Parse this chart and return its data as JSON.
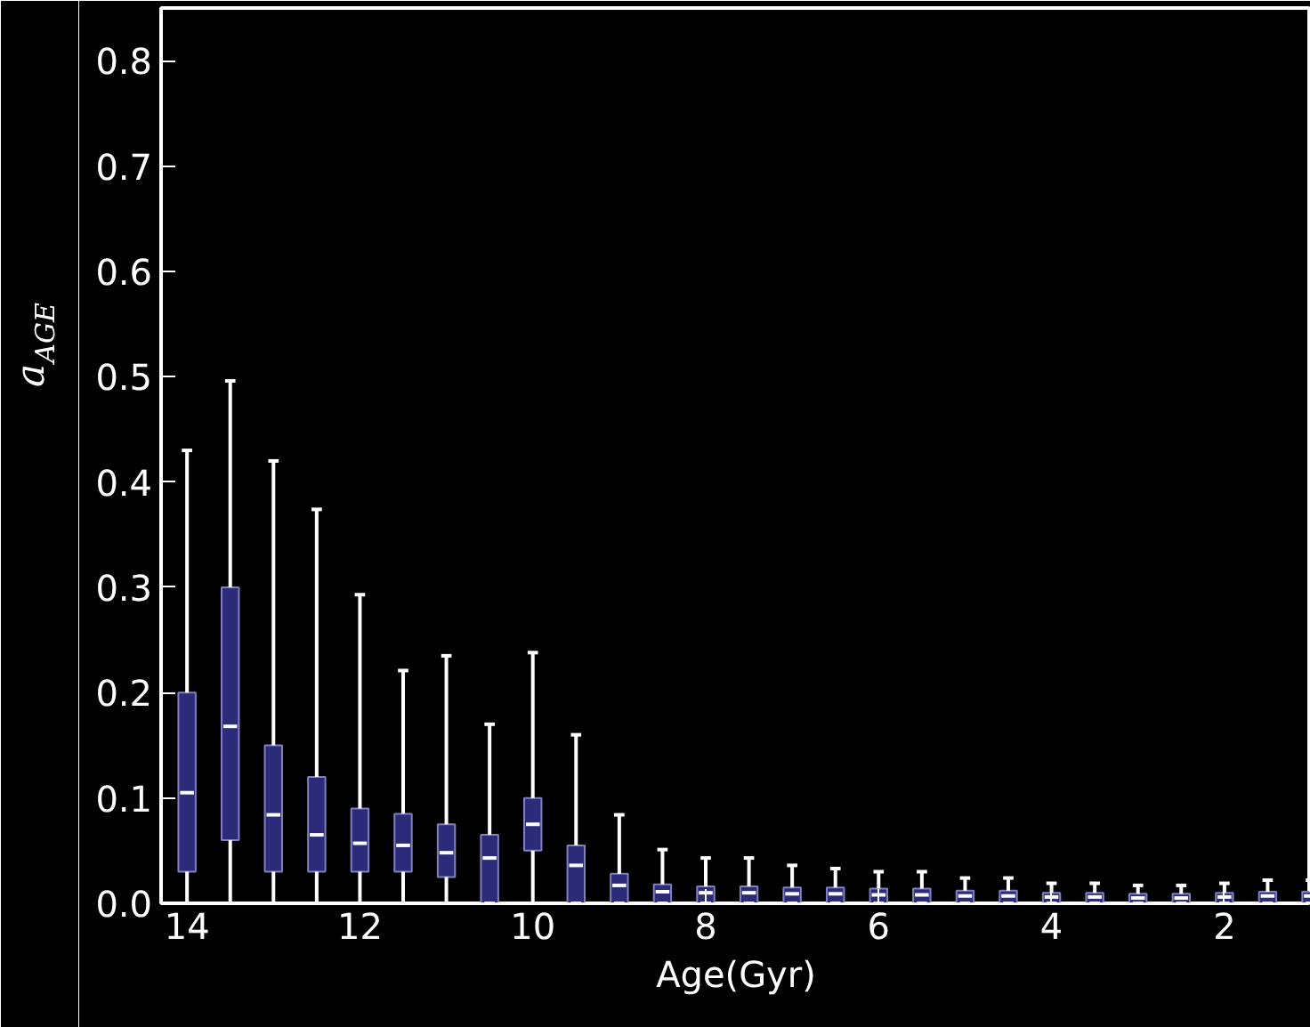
{
  "chart_data": {
    "type": "box",
    "xlabel": "Age(Gyr)",
    "ylabel": "a$_{AGE}$",
    "x": [
      14,
      13.5,
      13,
      12.5,
      12,
      11.5,
      11,
      10.5,
      10,
      9.5,
      9,
      8.5,
      8,
      7.5,
      7,
      6.5,
      6,
      5.5,
      5,
      4.5,
      4,
      3.5,
      3,
      2.5,
      2,
      1.5,
      1
    ],
    "color": "#2b2b7a",
    "boxes": [
      {
        "low": 0,
        "q1": 0.03,
        "median": 0.105,
        "q3": 0.2,
        "high": 0.43
      },
      {
        "low": 0,
        "q1": 0.06,
        "median": 0.168,
        "q3": 0.3,
        "high": 0.496
      },
      {
        "low": 0,
        "q1": 0.03,
        "median": 0.084,
        "q3": 0.15,
        "high": 0.42
      },
      {
        "low": 0,
        "q1": 0.03,
        "median": 0.065,
        "q3": 0.12,
        "high": 0.374
      },
      {
        "low": 0,
        "q1": 0.03,
        "median": 0.057,
        "q3": 0.09,
        "high": 0.293
      },
      {
        "low": 0,
        "q1": 0.03,
        "median": 0.055,
        "q3": 0.085,
        "high": 0.221
      },
      {
        "low": 0,
        "q1": 0.025,
        "median": 0.048,
        "q3": 0.075,
        "high": 0.235
      },
      {
        "low": 0,
        "q1": 0,
        "median": 0.043,
        "q3": 0.065,
        "high": 0.17
      },
      {
        "low": 0,
        "q1": 0.05,
        "median": 0.075,
        "q3": 0.1,
        "high": 0.238
      },
      {
        "low": 0,
        "q1": 0,
        "median": 0.036,
        "q3": 0.055,
        "high": 0.16
      },
      {
        "low": 0,
        "q1": 0,
        "median": 0.017,
        "q3": 0.028,
        "high": 0.084
      },
      {
        "low": 0,
        "q1": 0,
        "median": 0.011,
        "q3": 0.018,
        "high": 0.051
      },
      {
        "low": 0,
        "q1": 0,
        "median": 0.01,
        "q3": 0.016,
        "high": 0.043
      },
      {
        "low": 0,
        "q1": 0,
        "median": 0.01,
        "q3": 0.016,
        "high": 0.043
      },
      {
        "low": 0,
        "q1": 0,
        "median": 0.009,
        "q3": 0.015,
        "high": 0.036
      },
      {
        "low": 0,
        "q1": 0,
        "median": 0.009,
        "q3": 0.015,
        "high": 0.033
      },
      {
        "low": 0,
        "q1": 0,
        "median": 0.008,
        "q3": 0.014,
        "high": 0.03
      },
      {
        "low": 0,
        "q1": 0,
        "median": 0.008,
        "q3": 0.014,
        "high": 0.03
      },
      {
        "low": 0,
        "q1": 0,
        "median": 0.007,
        "q3": 0.012,
        "high": 0.024
      },
      {
        "low": 0,
        "q1": 0,
        "median": 0.007,
        "q3": 0.012,
        "high": 0.024
      },
      {
        "low": 0,
        "q1": 0,
        "median": 0.006,
        "q3": 0.01,
        "high": 0.019
      },
      {
        "low": 0,
        "q1": 0,
        "median": 0.006,
        "q3": 0.01,
        "high": 0.019
      },
      {
        "low": 0,
        "q1": 0,
        "median": 0.005,
        "q3": 0.009,
        "high": 0.017
      },
      {
        "low": 0,
        "q1": 0,
        "median": 0.005,
        "q3": 0.009,
        "high": 0.017
      },
      {
        "low": 0,
        "q1": 0,
        "median": 0.006,
        "q3": 0.01,
        "high": 0.019
      },
      {
        "low": 0,
        "q1": 0,
        "median": 0.007,
        "q3": 0.011,
        "high": 0.022
      },
      {
        "low": 0,
        "q1": 0,
        "median": 0.007,
        "q3": 0.011,
        "high": 0.022
      }
    ],
    "xlim": [
      14.3,
      1.0
    ],
    "ylim": [
      0,
      0.85
    ],
    "xticks": [
      14,
      12,
      10,
      8,
      6,
      4,
      2
    ],
    "yticks": [
      {
        "value": 0,
        "label": "0.0"
      },
      0.1,
      0.2,
      0.3,
      0.4,
      0.5,
      0.6,
      0.7,
      0.8
    ],
    "grid": false
  }
}
